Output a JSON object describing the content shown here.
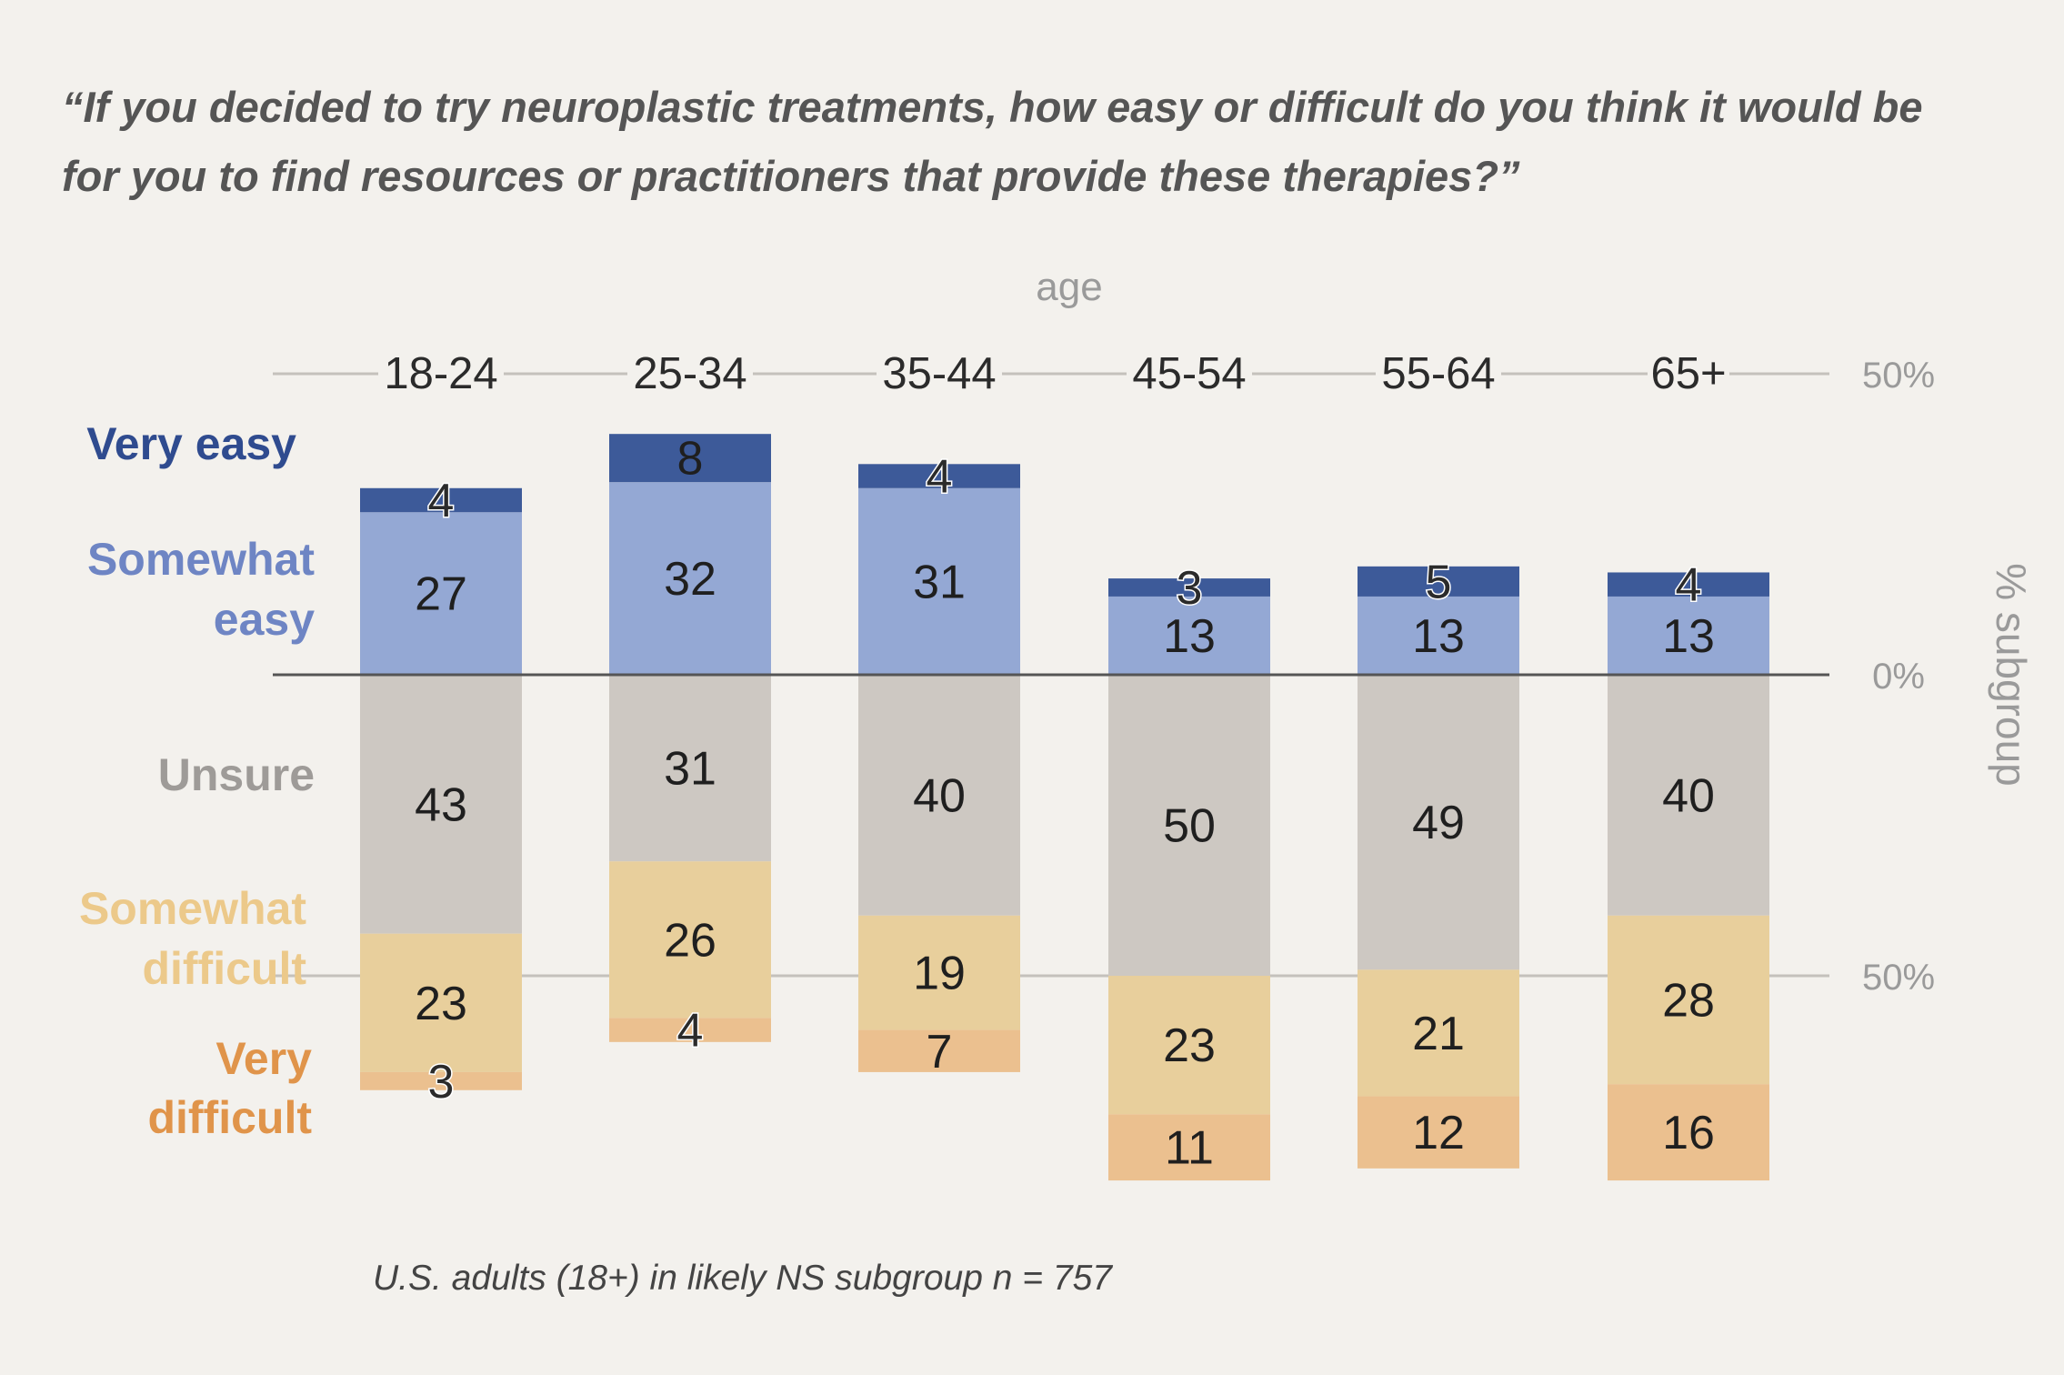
{
  "title": "“If you decided to try neuroplastic treatments, how easy or difficult do you think it would be for you to find resources or practitioners that provide these therapies?”",
  "footnote": "U.S. adults (18+) in likely NS subgroup n = 757",
  "chart_data": {
    "type": "bar",
    "stacked": "diverging",
    "xlabel": "age",
    "ylabel": "% subgroup",
    "categories": [
      "18-24",
      "25-34",
      "35-44",
      "45-54",
      "55-64",
      "65+"
    ],
    "ylim": [
      -50,
      50
    ],
    "y_ticks": [
      "50%",
      "0%",
      "50%"
    ],
    "grid": "horizontal at 50%, 0%, 50%",
    "legend": "left, stacked labels",
    "series": [
      {
        "name": "Very easy",
        "side": "positive",
        "color": "#3d5a99",
        "label_color": "#2f4b8f",
        "values": [
          4,
          8,
          4,
          3,
          5,
          4
        ]
      },
      {
        "name": "Somewhat easy",
        "side": "positive",
        "color": "#94a8d4",
        "label_color": "#6e85c4",
        "values": [
          27,
          32,
          31,
          13,
          13,
          13
        ]
      },
      {
        "name": "Unsure",
        "side": "negative",
        "color": "#cdc8c2",
        "label_color": "#9e9b98",
        "values": [
          43,
          31,
          40,
          50,
          49,
          40
        ]
      },
      {
        "name": "Somewhat difficult",
        "side": "negative",
        "color": "#e8cf9c",
        "label_color": "#ecc98a",
        "values": [
          23,
          26,
          19,
          23,
          21,
          28
        ]
      },
      {
        "name": "Very difficult",
        "side": "negative",
        "color": "#ebc08f",
        "label_color": "#e0944a",
        "values": [
          3,
          4,
          7,
          11,
          12,
          16
        ]
      }
    ]
  }
}
